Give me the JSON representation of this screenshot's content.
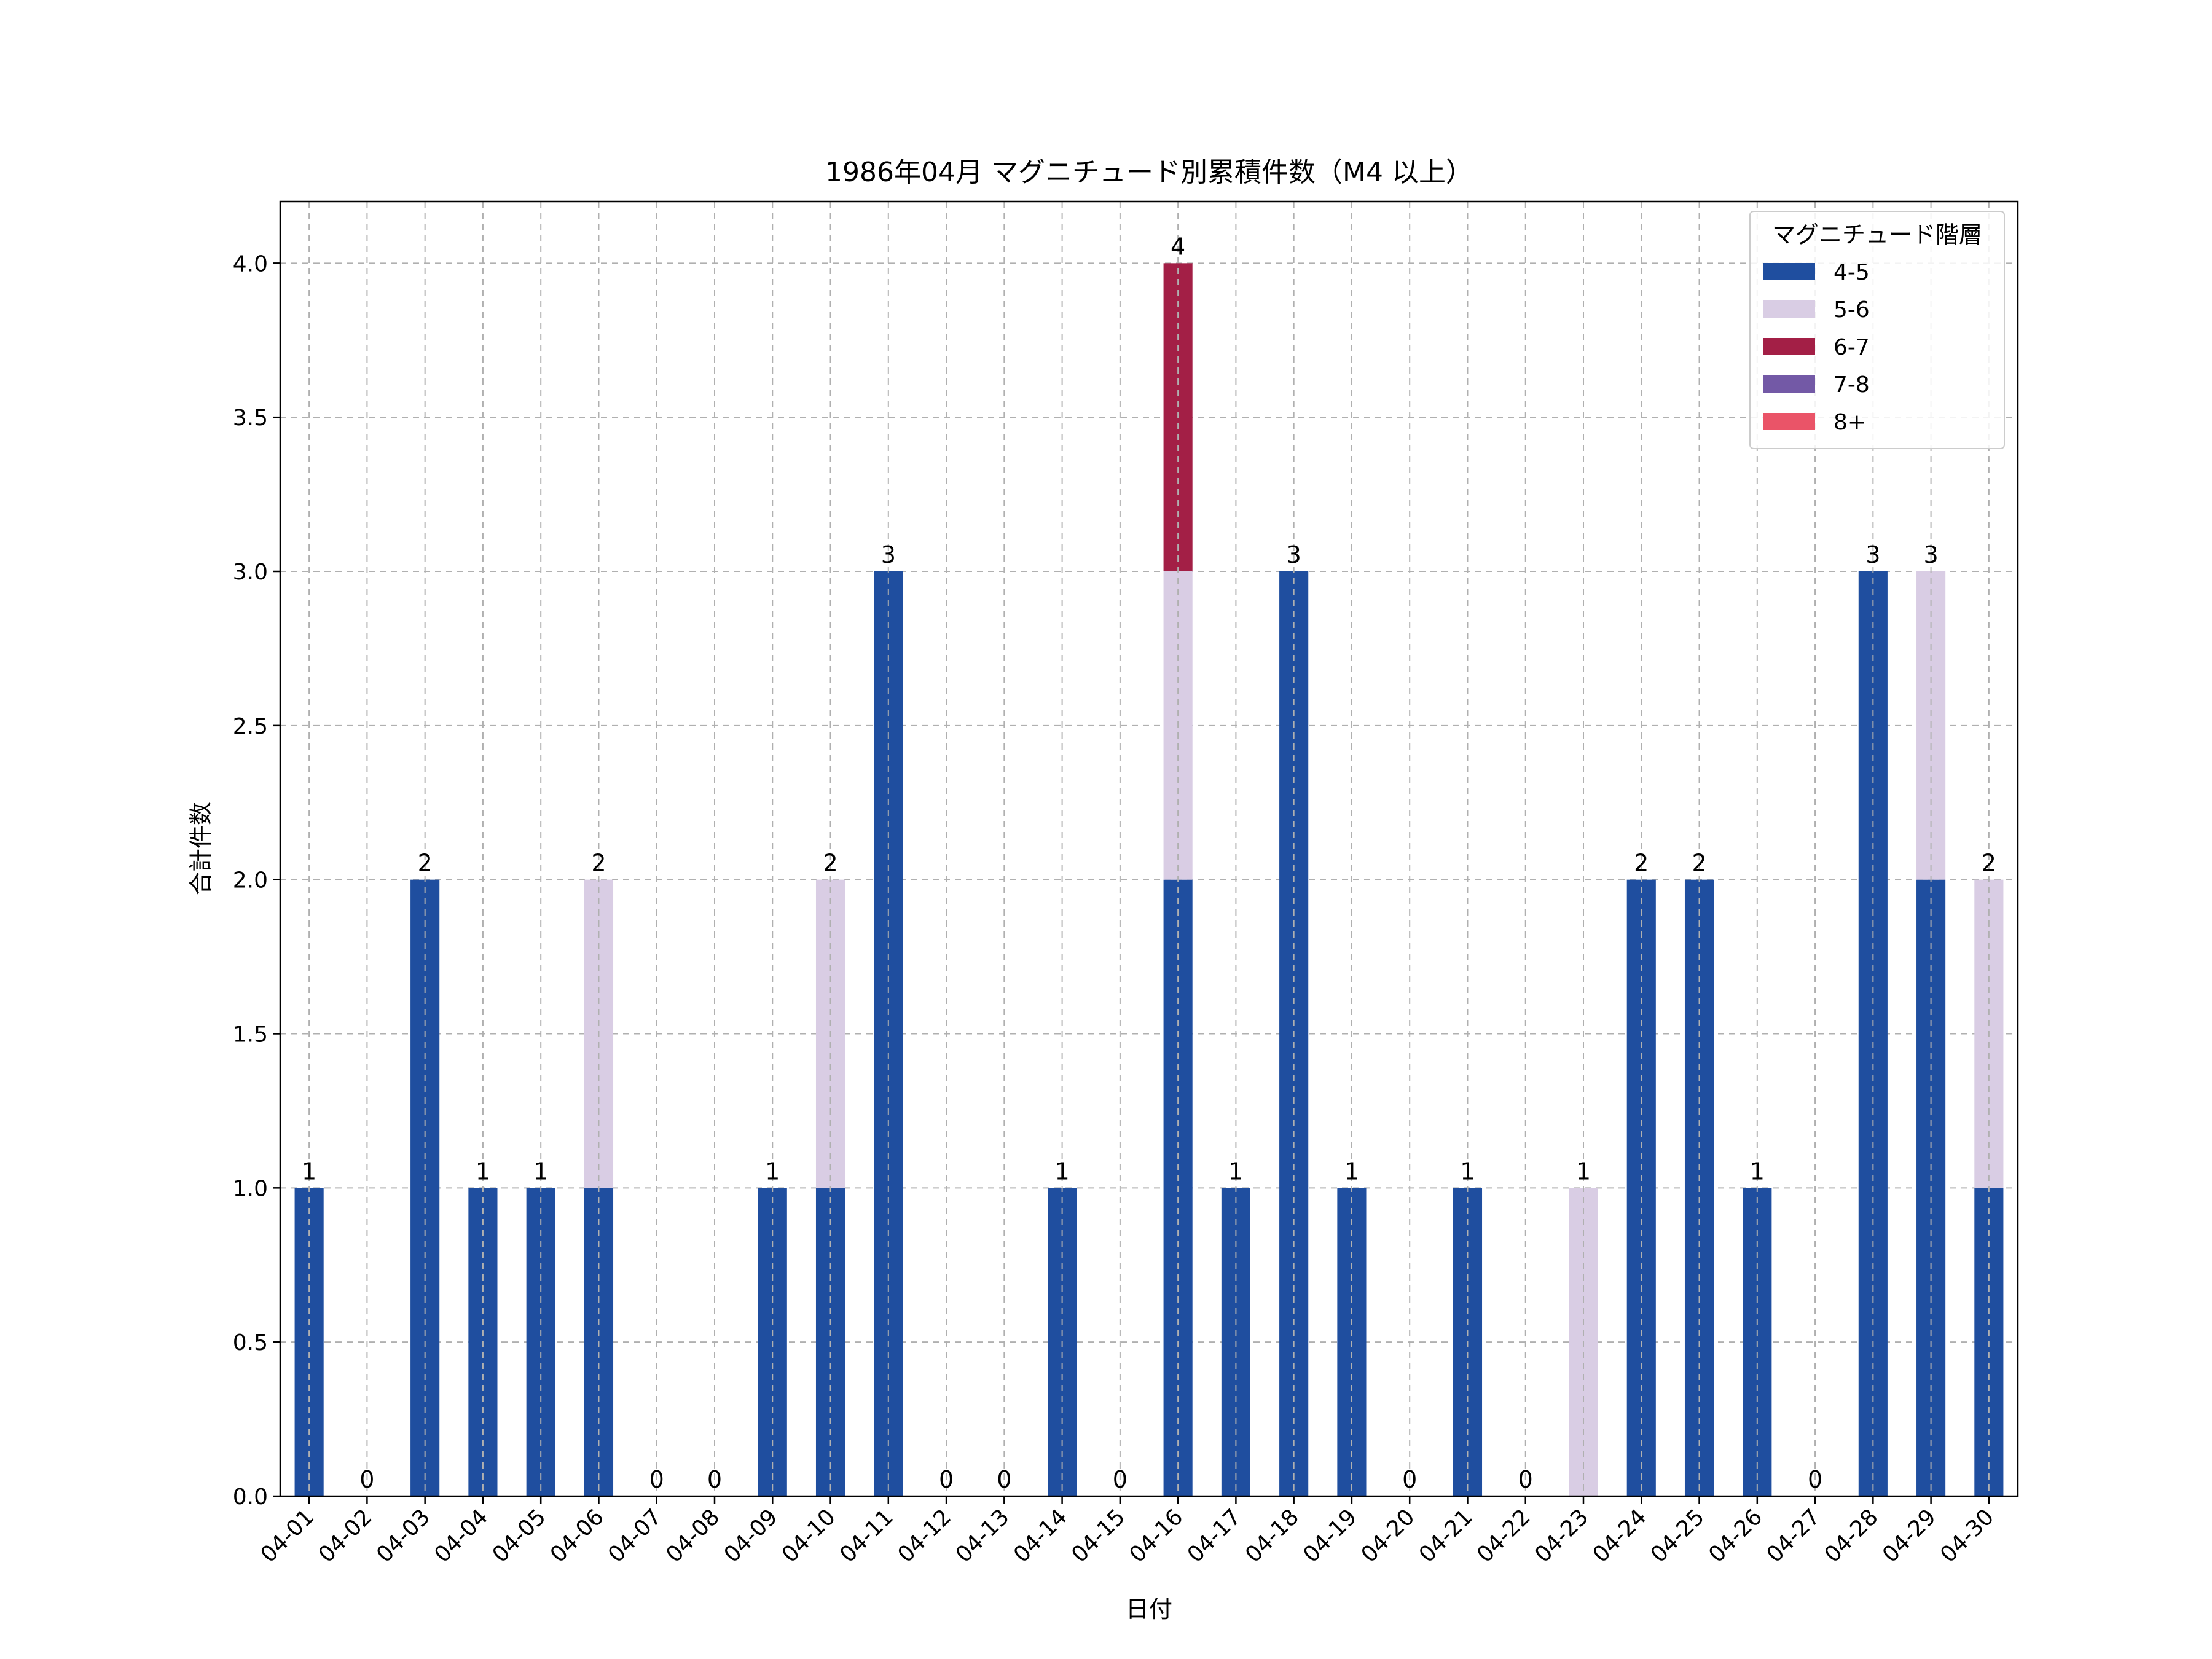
{
  "chart_data": {
    "type": "bar",
    "stacked": true,
    "title": "1986年04月 マグニチュード別累積件数（M4 以上）",
    "xlabel": "日付",
    "ylabel": "合計件数",
    "ylim": [
      0,
      4.2
    ],
    "yticks": [
      "0.0",
      "0.5",
      "1.0",
      "1.5",
      "2.0",
      "2.5",
      "3.0",
      "3.5",
      "4.0"
    ],
    "grid": true,
    "legend": {
      "title": "マグニチュード階層",
      "placement": "top-right"
    },
    "categories": [
      "04-01",
      "04-02",
      "04-03",
      "04-04",
      "04-05",
      "04-06",
      "04-07",
      "04-08",
      "04-09",
      "04-10",
      "04-11",
      "04-12",
      "04-13",
      "04-14",
      "04-15",
      "04-16",
      "04-17",
      "04-18",
      "04-19",
      "04-20",
      "04-21",
      "04-22",
      "04-23",
      "04-24",
      "04-25",
      "04-26",
      "04-27",
      "04-28",
      "04-29",
      "04-30"
    ],
    "series": [
      {
        "name": "4-5",
        "color": "#1f4e9f",
        "values": [
          1,
          0,
          2,
          1,
          1,
          1,
          0,
          0,
          1,
          1,
          3,
          0,
          0,
          1,
          0,
          2,
          1,
          3,
          1,
          0,
          1,
          0,
          0,
          2,
          2,
          1,
          0,
          3,
          2,
          1
        ]
      },
      {
        "name": "5-6",
        "color": "#d9cde4",
        "values": [
          0,
          0,
          0,
          0,
          0,
          1,
          0,
          0,
          0,
          1,
          0,
          0,
          0,
          0,
          0,
          1,
          0,
          0,
          0,
          0,
          0,
          0,
          1,
          0,
          0,
          0,
          0,
          0,
          1,
          1
        ]
      },
      {
        "name": "6-7",
        "color": "#a31f46",
        "values": [
          0,
          0,
          0,
          0,
          0,
          0,
          0,
          0,
          0,
          0,
          0,
          0,
          0,
          0,
          0,
          1,
          0,
          0,
          0,
          0,
          0,
          0,
          0,
          0,
          0,
          0,
          0,
          0,
          0,
          0
        ]
      },
      {
        "name": "7-8",
        "color": "#7359a6",
        "values": [
          0,
          0,
          0,
          0,
          0,
          0,
          0,
          0,
          0,
          0,
          0,
          0,
          0,
          0,
          0,
          0,
          0,
          0,
          0,
          0,
          0,
          0,
          0,
          0,
          0,
          0,
          0,
          0,
          0,
          0
        ]
      },
      {
        "name": "8+",
        "color": "#ea5468",
        "values": [
          0,
          0,
          0,
          0,
          0,
          0,
          0,
          0,
          0,
          0,
          0,
          0,
          0,
          0,
          0,
          0,
          0,
          0,
          0,
          0,
          0,
          0,
          0,
          0,
          0,
          0,
          0,
          0,
          0,
          0
        ]
      }
    ],
    "totals": [
      "1",
      "0",
      "2",
      "1",
      "1",
      "2",
      "0",
      "0",
      "1",
      "2",
      "3",
      "0",
      "0",
      "1",
      "0",
      "4",
      "1",
      "3",
      "1",
      "0",
      "1",
      "0",
      "1",
      "2",
      "2",
      "1",
      "0",
      "3",
      "3",
      "2"
    ]
  }
}
